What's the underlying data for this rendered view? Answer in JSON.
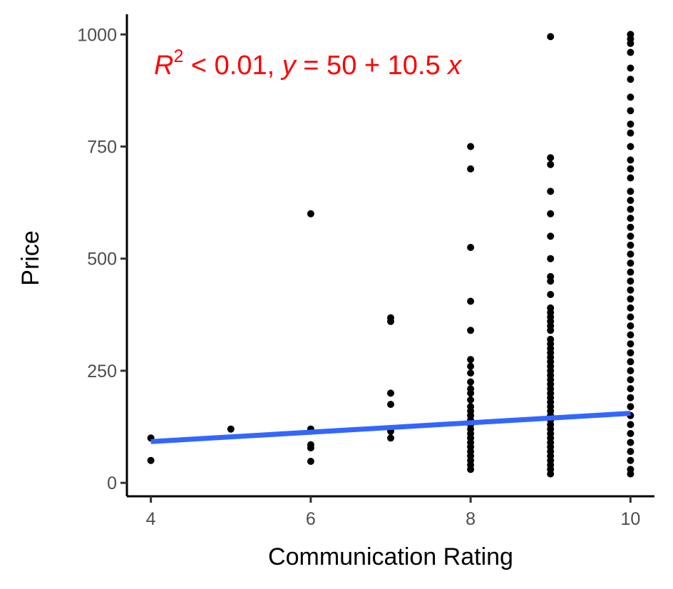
{
  "chart_data": {
    "type": "scatter",
    "title": "",
    "xlabel": "Communication Rating",
    "ylabel": "Price",
    "xlim": [
      3.7,
      10.3
    ],
    "ylim": [
      -30,
      1045
    ],
    "x_ticks": [
      4,
      6,
      8,
      10
    ],
    "y_ticks": [
      0,
      250,
      500,
      750,
      1000
    ],
    "grid": false,
    "legend": "none",
    "colors": {
      "points": "#000000",
      "fit_line": "#3366ff",
      "annotation": "#ff0000"
    },
    "annotation": {
      "r_label": "R",
      "r_sup": "2",
      "r_rest": " < 0.01, ",
      "y_var": "y",
      "eq_mid": " = 50 + 10.5 ",
      "x_var": "x"
    },
    "fit_line": {
      "intercept": 50,
      "slope": 10.5,
      "x_range": [
        4,
        10
      ]
    },
    "points": [
      {
        "x": 4,
        "y": 100
      },
      {
        "x": 4,
        "y": 50
      },
      {
        "x": 5,
        "y": 120
      },
      {
        "x": 6,
        "y": 600
      },
      {
        "x": 6,
        "y": 120
      },
      {
        "x": 6,
        "y": 115
      },
      {
        "x": 6,
        "y": 85
      },
      {
        "x": 6,
        "y": 78
      },
      {
        "x": 6,
        "y": 48
      },
      {
        "x": 7,
        "y": 368
      },
      {
        "x": 7,
        "y": 360
      },
      {
        "x": 7,
        "y": 200
      },
      {
        "x": 7,
        "y": 175
      },
      {
        "x": 7,
        "y": 115
      },
      {
        "x": 7,
        "y": 100
      },
      {
        "x": 8,
        "y": 750
      },
      {
        "x": 8,
        "y": 700
      },
      {
        "x": 8,
        "y": 525
      },
      {
        "x": 8,
        "y": 405
      },
      {
        "x": 8,
        "y": 340
      },
      {
        "x": 8,
        "y": 275
      },
      {
        "x": 8,
        "y": 260
      },
      {
        "x": 8,
        "y": 245
      },
      {
        "x": 8,
        "y": 225
      },
      {
        "x": 8,
        "y": 210
      },
      {
        "x": 8,
        "y": 200
      },
      {
        "x": 8,
        "y": 185
      },
      {
        "x": 8,
        "y": 170
      },
      {
        "x": 8,
        "y": 160
      },
      {
        "x": 8,
        "y": 150
      },
      {
        "x": 8,
        "y": 140
      },
      {
        "x": 8,
        "y": 130
      },
      {
        "x": 8,
        "y": 120
      },
      {
        "x": 8,
        "y": 110
      },
      {
        "x": 8,
        "y": 100
      },
      {
        "x": 8,
        "y": 90
      },
      {
        "x": 8,
        "y": 80
      },
      {
        "x": 8,
        "y": 70
      },
      {
        "x": 8,
        "y": 60
      },
      {
        "x": 8,
        "y": 50
      },
      {
        "x": 8,
        "y": 40
      },
      {
        "x": 8,
        "y": 30
      },
      {
        "x": 9,
        "y": 995
      },
      {
        "x": 9,
        "y": 725
      },
      {
        "x": 9,
        "y": 710
      },
      {
        "x": 9,
        "y": 650
      },
      {
        "x": 9,
        "y": 600
      },
      {
        "x": 9,
        "y": 550
      },
      {
        "x": 9,
        "y": 500
      },
      {
        "x": 9,
        "y": 460
      },
      {
        "x": 9,
        "y": 450
      },
      {
        "x": 9,
        "y": 420
      },
      {
        "x": 9,
        "y": 390
      },
      {
        "x": 9,
        "y": 380
      },
      {
        "x": 9,
        "y": 370
      },
      {
        "x": 9,
        "y": 360
      },
      {
        "x": 9,
        "y": 350
      },
      {
        "x": 9,
        "y": 340
      },
      {
        "x": 9,
        "y": 320
      },
      {
        "x": 9,
        "y": 310
      },
      {
        "x": 9,
        "y": 300
      },
      {
        "x": 9,
        "y": 290
      },
      {
        "x": 9,
        "y": 280
      },
      {
        "x": 9,
        "y": 270
      },
      {
        "x": 9,
        "y": 260
      },
      {
        "x": 9,
        "y": 250
      },
      {
        "x": 9,
        "y": 240
      },
      {
        "x": 9,
        "y": 230
      },
      {
        "x": 9,
        "y": 220
      },
      {
        "x": 9,
        "y": 210
      },
      {
        "x": 9,
        "y": 200
      },
      {
        "x": 9,
        "y": 190
      },
      {
        "x": 9,
        "y": 180
      },
      {
        "x": 9,
        "y": 170
      },
      {
        "x": 9,
        "y": 160
      },
      {
        "x": 9,
        "y": 150
      },
      {
        "x": 9,
        "y": 140
      },
      {
        "x": 9,
        "y": 130
      },
      {
        "x": 9,
        "y": 120
      },
      {
        "x": 9,
        "y": 110
      },
      {
        "x": 9,
        "y": 100
      },
      {
        "x": 9,
        "y": 90
      },
      {
        "x": 9,
        "y": 80
      },
      {
        "x": 9,
        "y": 70
      },
      {
        "x": 9,
        "y": 60
      },
      {
        "x": 9,
        "y": 50
      },
      {
        "x": 9,
        "y": 40
      },
      {
        "x": 9,
        "y": 30
      },
      {
        "x": 9,
        "y": 20
      },
      {
        "x": 10,
        "y": 1000
      },
      {
        "x": 10,
        "y": 990
      },
      {
        "x": 10,
        "y": 980
      },
      {
        "x": 10,
        "y": 960
      },
      {
        "x": 10,
        "y": 925
      },
      {
        "x": 10,
        "y": 900
      },
      {
        "x": 10,
        "y": 860
      },
      {
        "x": 10,
        "y": 830
      },
      {
        "x": 10,
        "y": 800
      },
      {
        "x": 10,
        "y": 780
      },
      {
        "x": 10,
        "y": 750
      },
      {
        "x": 10,
        "y": 720
      },
      {
        "x": 10,
        "y": 700
      },
      {
        "x": 10,
        "y": 680
      },
      {
        "x": 10,
        "y": 650
      },
      {
        "x": 10,
        "y": 630
      },
      {
        "x": 10,
        "y": 610
      },
      {
        "x": 10,
        "y": 590
      },
      {
        "x": 10,
        "y": 570
      },
      {
        "x": 10,
        "y": 550
      },
      {
        "x": 10,
        "y": 530
      },
      {
        "x": 10,
        "y": 510
      },
      {
        "x": 10,
        "y": 490
      },
      {
        "x": 10,
        "y": 470
      },
      {
        "x": 10,
        "y": 450
      },
      {
        "x": 10,
        "y": 430
      },
      {
        "x": 10,
        "y": 410
      },
      {
        "x": 10,
        "y": 390
      },
      {
        "x": 10,
        "y": 370
      },
      {
        "x": 10,
        "y": 350
      },
      {
        "x": 10,
        "y": 330
      },
      {
        "x": 10,
        "y": 310
      },
      {
        "x": 10,
        "y": 290
      },
      {
        "x": 10,
        "y": 270
      },
      {
        "x": 10,
        "y": 250
      },
      {
        "x": 10,
        "y": 230
      },
      {
        "x": 10,
        "y": 210
      },
      {
        "x": 10,
        "y": 190
      },
      {
        "x": 10,
        "y": 170
      },
      {
        "x": 10,
        "y": 150
      },
      {
        "x": 10,
        "y": 130
      },
      {
        "x": 10,
        "y": 110
      },
      {
        "x": 10,
        "y": 90
      },
      {
        "x": 10,
        "y": 70
      },
      {
        "x": 10,
        "y": 50
      },
      {
        "x": 10,
        "y": 30
      },
      {
        "x": 10,
        "y": 20
      }
    ]
  }
}
